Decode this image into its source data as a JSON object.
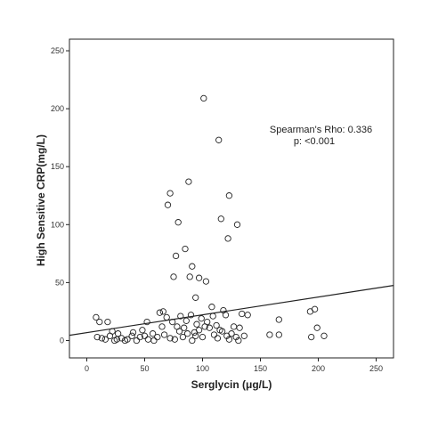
{
  "chart_data": {
    "type": "scatter",
    "xlabel": "Serglycin (μg/L)",
    "ylabel": "High Sensitive CRP(mg/L)",
    "xlim": [
      -15,
      265
    ],
    "ylim": [
      -15,
      260
    ],
    "x_ticks": [
      0,
      50,
      100,
      150,
      200,
      250
    ],
    "y_ticks": [
      0,
      50,
      100,
      150,
      200,
      250
    ],
    "grid": false,
    "colors": {
      "frame": "#222222",
      "marker": "#222222",
      "fit_line": "#222222"
    },
    "annotation": {
      "line1": "Spearman's Rho: 0.336",
      "line2": "p: <0.001",
      "anchor": [
        158,
        174
      ]
    },
    "fit_line": {
      "x": [
        -15,
        265
      ],
      "y": [
        4.5,
        47.5
      ]
    },
    "series": [
      {
        "marker": "open-circle",
        "points": [
          [
            101,
            209
          ],
          [
            114,
            173
          ],
          [
            88,
            137
          ],
          [
            72,
            127
          ],
          [
            123,
            125
          ],
          [
            70,
            117
          ],
          [
            79,
            102
          ],
          [
            116,
            105
          ],
          [
            130,
            100
          ],
          [
            122,
            88
          ],
          [
            85,
            79
          ],
          [
            77,
            73
          ],
          [
            91,
            64
          ],
          [
            75,
            55
          ],
          [
            89,
            55
          ],
          [
            97,
            54
          ],
          [
            103,
            51
          ],
          [
            94,
            37
          ],
          [
            108,
            29
          ],
          [
            118,
            26
          ],
          [
            66,
            25
          ],
          [
            120,
            22
          ],
          [
            134,
            23
          ],
          [
            139,
            22
          ],
          [
            166,
            18
          ],
          [
            8,
            20
          ],
          [
            11,
            16
          ],
          [
            18,
            16
          ],
          [
            52,
            16
          ],
          [
            48,
            9
          ],
          [
            22,
            8
          ],
          [
            27,
            6
          ],
          [
            63,
            24
          ],
          [
            69,
            20
          ],
          [
            74,
            16
          ],
          [
            81,
            21
          ],
          [
            86,
            17
          ],
          [
            90,
            22
          ],
          [
            95,
            14
          ],
          [
            99,
            19
          ],
          [
            104,
            16
          ],
          [
            109,
            21
          ],
          [
            112,
            13
          ],
          [
            127,
            12
          ],
          [
            132,
            11
          ],
          [
            57,
            6
          ],
          [
            61,
            3
          ],
          [
            67,
            5
          ],
          [
            72,
            2
          ],
          [
            76,
            1
          ],
          [
            80,
            8
          ],
          [
            83,
            3
          ],
          [
            87,
            6
          ],
          [
            91,
            0
          ],
          [
            94,
            4
          ],
          [
            97,
            9
          ],
          [
            100,
            3
          ],
          [
            106,
            11
          ],
          [
            110,
            5
          ],
          [
            113,
            2
          ],
          [
            117,
            8
          ],
          [
            121,
            4
          ],
          [
            125,
            6
          ],
          [
            129,
            3
          ],
          [
            131,
            0
          ],
          [
            13,
            2
          ],
          [
            16,
            1
          ],
          [
            20,
            4
          ],
          [
            24,
            0
          ],
          [
            30,
            2
          ],
          [
            35,
            1
          ],
          [
            39,
            4
          ],
          [
            43,
            0
          ],
          [
            46,
            3
          ],
          [
            53,
            1
          ],
          [
            58,
            0
          ],
          [
            158,
            5
          ],
          [
            166,
            5
          ],
          [
            193,
            25
          ],
          [
            197,
            27
          ],
          [
            199,
            11
          ],
          [
            194,
            3
          ],
          [
            205,
            4
          ],
          [
            9,
            3
          ],
          [
            26,
            1
          ],
          [
            65,
            12
          ],
          [
            78,
            12
          ],
          [
            84,
            11
          ],
          [
            93,
            7
          ],
          [
            102,
            12
          ],
          [
            115,
            9
          ],
          [
            123,
            1
          ],
          [
            136,
            4
          ],
          [
            33,
            0
          ],
          [
            40,
            7
          ],
          [
            50,
            4
          ]
        ]
      }
    ]
  }
}
